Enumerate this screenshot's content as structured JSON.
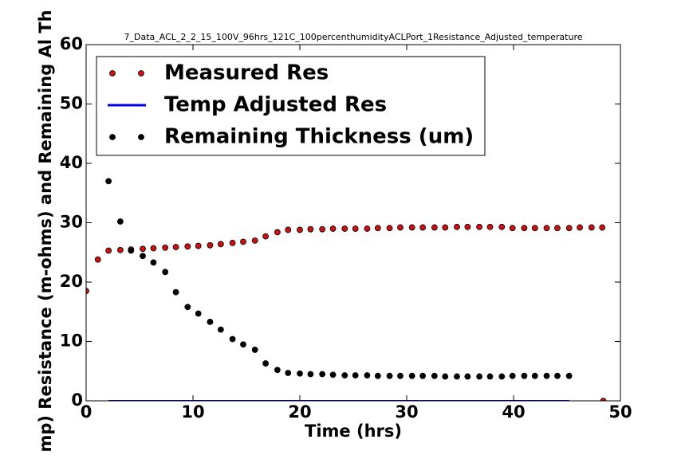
{
  "chart_data": {
    "type": "scatter",
    "title": "7_Data_ACL_2_2_15_100V_96hrs_121C_100percenthumidityACLPort_1Resistance_Adjusted_temperature",
    "x_label": "Time (hrs)",
    "y_label": "mp) Resistance (m-ohms) and Remaining Al Th",
    "xlim": [
      0,
      50
    ],
    "ylim": [
      0,
      60
    ],
    "xticks": [
      0,
      10,
      20,
      30,
      40,
      50
    ],
    "yticks": [
      0,
      10,
      20,
      30,
      40,
      50,
      60
    ],
    "legend": "upper left",
    "series": [
      {
        "name": "Measured Res",
        "style": "dots",
        "color": "#cc1111",
        "x": [
          0,
          1.1,
          2.1,
          3.2,
          4.2,
          5.3,
          6.3,
          7.4,
          8.4,
          9.5,
          10.5,
          11.6,
          12.6,
          13.7,
          14.7,
          15.8,
          16.8,
          17.9,
          18.9,
          20.0,
          21,
          22.1,
          23.1,
          24.2,
          25.2,
          26.3,
          27.3,
          28.4,
          29.4,
          30.5,
          31.5,
          32.6,
          33.6,
          34.7,
          35.7,
          36.8,
          37.8,
          38.9,
          39.9,
          41.0,
          42,
          43.1,
          44.1,
          45.2,
          46.2,
          47.3,
          48.3,
          48.4
        ],
        "values": [
          18.5,
          23.8,
          25.3,
          25.4,
          25.5,
          25.6,
          25.7,
          25.8,
          25.9,
          26.0,
          26.1,
          26.2,
          26.4,
          26.6,
          26.8,
          27.0,
          27.7,
          28.4,
          28.8,
          28.8,
          28.9,
          28.9,
          29.0,
          29.0,
          29.0,
          29.0,
          29.1,
          29.1,
          29.2,
          29.2,
          29.2,
          29.2,
          29.2,
          29.3,
          29.3,
          29.3,
          29.3,
          29.3,
          29.1,
          29.1,
          29.1,
          29.1,
          29.1,
          29.1,
          29.2,
          29.2,
          29.2,
          0
        ]
      },
      {
        "name": "Temp Adjusted Res",
        "style": "line",
        "color": "#0000ee",
        "x": [
          2.1,
          45.2
        ],
        "values": [
          0,
          0
        ]
      },
      {
        "name": "Remaining Thickness (um)",
        "style": "dots",
        "color": "#000000",
        "x": [
          2.1,
          3.2,
          4.2,
          5.3,
          6.3,
          7.4,
          8.4,
          9.5,
          10.5,
          11.6,
          12.6,
          13.7,
          14.7,
          15.8,
          16.8,
          17.9,
          18.9,
          20.0,
          21,
          22.1,
          23.1,
          24.2,
          25.2,
          26.3,
          27.3,
          28.4,
          29.4,
          30.5,
          31.5,
          32.6,
          33.6,
          34.7,
          35.7,
          36.8,
          37.8,
          38.9,
          39.9,
          41.0,
          42,
          43.1,
          44.1,
          45.2
        ],
        "values": [
          37,
          30.2,
          25.3,
          24.4,
          23.3,
          21.7,
          18.3,
          15.8,
          14.7,
          13.3,
          12.0,
          10.4,
          9.5,
          8.6,
          6.3,
          5.2,
          4.7,
          4.6,
          4.5,
          4.5,
          4.4,
          4.3,
          4.3,
          4.3,
          4.2,
          4.2,
          4.2,
          4.2,
          4.2,
          4.2,
          4.1,
          4.1,
          4.1,
          4.1,
          4.1,
          4.1,
          4.2,
          4.2,
          4.2,
          4.2,
          4.2,
          4.2
        ]
      }
    ]
  }
}
